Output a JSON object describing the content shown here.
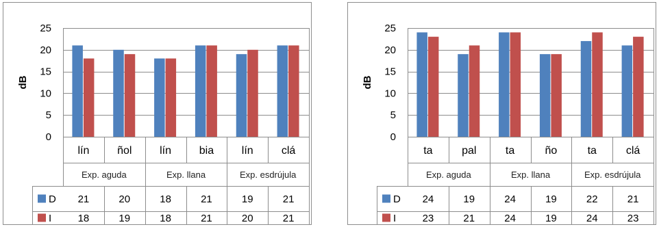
{
  "chart_data": [
    {
      "type": "bar",
      "ylabel": "dB",
      "ylim": [
        0,
        25
      ],
      "yticks": [
        0,
        5,
        10,
        15,
        20,
        25
      ],
      "grid": true,
      "categories": [
        "lín",
        "ñol",
        "lín",
        "bia",
        "lín",
        "clá"
      ],
      "groups": [
        {
          "label": "Exp. aguda",
          "span": 2
        },
        {
          "label": "Exp. llana",
          "span": 2
        },
        {
          "label": "Exp. esdrújula",
          "span": 2
        }
      ],
      "series": [
        {
          "name": "D",
          "color": "#4f81bd",
          "values": [
            21,
            20,
            18,
            21,
            19,
            21
          ]
        },
        {
          "name": "I",
          "color": "#c0504d",
          "values": [
            18,
            19,
            18,
            21,
            20,
            21
          ]
        }
      ]
    },
    {
      "type": "bar",
      "ylabel": "dB",
      "ylim": [
        0,
        25
      ],
      "yticks": [
        0,
        5,
        10,
        15,
        20,
        25
      ],
      "grid": true,
      "categories": [
        "ta",
        "pal",
        "ta",
        "ño",
        "ta",
        "clá"
      ],
      "groups": [
        {
          "label": "Exp. aguda",
          "span": 2
        },
        {
          "label": "Exp. llana",
          "span": 2
        },
        {
          "label": "Exp. esdrújula",
          "span": 2
        }
      ],
      "series": [
        {
          "name": "D",
          "color": "#4f81bd",
          "values": [
            24,
            19,
            24,
            19,
            22,
            21
          ]
        },
        {
          "name": "I",
          "color": "#c0504d",
          "values": [
            23,
            21,
            24,
            19,
            24,
            23
          ]
        }
      ]
    }
  ]
}
